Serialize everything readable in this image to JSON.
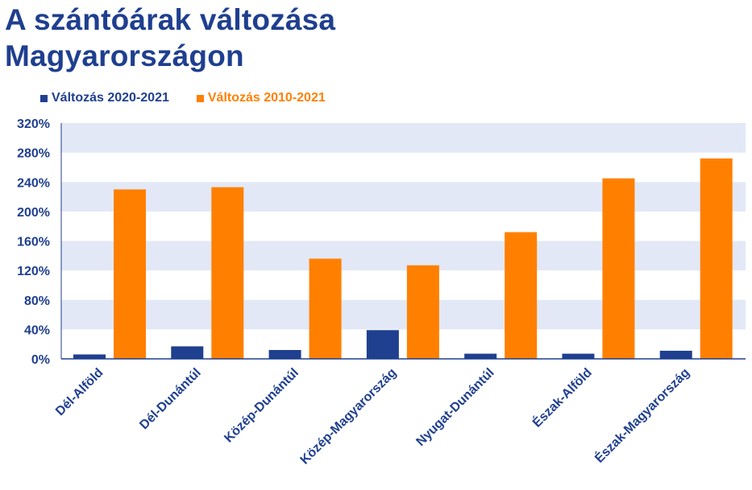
{
  "title_lines": [
    "A szántóárak változása",
    "Magyarországon"
  ],
  "colors": {
    "title": "#1f3f8f",
    "band": "#e2e8f6",
    "axis": "#1f3f8f"
  },
  "chart_data": {
    "type": "bar",
    "categories": [
      "Dél-Alföld",
      "Dél-Dunántúl",
      "Közép-Dunántúl",
      "Közép-Magyarország",
      "Nyugat-Dunántúl",
      "Észak-Alföld",
      "Észak-Magyarország"
    ],
    "series": [
      {
        "name": "Változás 2020-2021",
        "color": "#1f3f8f",
        "values": [
          6,
          17,
          12,
          39,
          7,
          7,
          11
        ]
      },
      {
        "name": "Változás 2010-2021",
        "color": "#ff8000",
        "values": [
          230,
          233,
          136,
          127,
          172,
          245,
          272
        ]
      }
    ],
    "ylim": [
      0,
      320
    ],
    "yticks": [
      0,
      40,
      80,
      120,
      160,
      200,
      240,
      280,
      320
    ],
    "ytick_labels": [
      "0%",
      "40%",
      "80%",
      "120%",
      "160%",
      "200%",
      "240%",
      "280%",
      "320%"
    ],
    "legend_position": "top-left",
    "grid": "alternating horizontal bands"
  }
}
